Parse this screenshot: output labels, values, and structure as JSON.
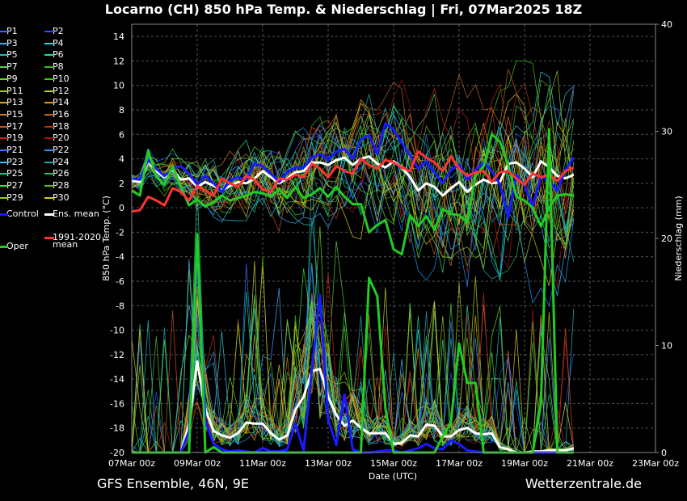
{
  "header": {
    "title": "Locarno  (CH)  850 hPa Temp. & Niederschlag | Fri, 07Mar2025 18Z"
  },
  "footer": {
    "left": "GFS Ensemble, 46N, 9E",
    "right": "Wetterzentrale.de"
  },
  "legend": {
    "members": [
      "P1",
      "P2",
      "P3",
      "P4",
      "P5",
      "P6",
      "P7",
      "P8",
      "P9",
      "P10",
      "P11",
      "P12",
      "P13",
      "P14",
      "P15",
      "P16",
      "P17",
      "P18",
      "P19",
      "P20",
      "P21",
      "P22",
      "P23",
      "P24",
      "P25",
      "P26",
      "P27",
      "P28",
      "P29",
      "P30"
    ],
    "control": "Control",
    "ens_mean": "Ens. mean",
    "oper": "Oper",
    "clim_line1": "1991-2020",
    "clim_line2": "mean"
  },
  "colors": {
    "background": "#000000",
    "grid": "#555555",
    "control": "#1a1aff",
    "ens_mean": "#ffffff",
    "oper": "#22cc22",
    "clim_mean": "#ff3333",
    "members": [
      "#3a6bff",
      "#2255ff",
      "#44aaff",
      "#33ccdd",
      "#22bbbb",
      "#22dd88",
      "#55cc55",
      "#33bb33",
      "#66dd22",
      "#44cc11",
      "#aacc22",
      "#cccc33",
      "#ddaa22",
      "#dd9911",
      "#cc7733",
      "#bb6622",
      "#cc5522",
      "#aa3311",
      "#cc2222",
      "#aa1111",
      "#3377ff",
      "#2299ff",
      "#33bbff",
      "#22aaaa",
      "#11cc99",
      "#22bb66",
      "#44dd44",
      "#66bb22",
      "#99cc11",
      "#ddcc11"
    ]
  },
  "chart_data": {
    "type": "line",
    "xlabel": "Date (UTC)",
    "ylabel_left": "850 hPa Temp. (°C)",
    "ylabel_right": "Niederschlag (mm)",
    "x_start": "07Mar 00z",
    "x_step_hours": 6,
    "x_ticks": [
      "07Mar 00z",
      "09Mar 00z",
      "11Mar 00z",
      "13Mar 00z",
      "15Mar 00z",
      "17Mar 00z",
      "19Mar 00z",
      "21Mar 00z",
      "23Mar 00z"
    ],
    "ylim_left": [
      -20,
      15
    ],
    "yticks_left": [
      14,
      12,
      10,
      8,
      6,
      4,
      2,
      0,
      -2,
      -4,
      -6,
      -8,
      -10,
      -12,
      -14,
      -16,
      -18,
      -20
    ],
    "ylim_right": [
      0,
      40
    ],
    "yticks_right": [
      40,
      30,
      20,
      10,
      0
    ],
    "grid": true,
    "series": [
      {
        "name": "Ens. mean",
        "axis": "left",
        "values": [
          2.2,
          2.1,
          3.8,
          3.0,
          2.5,
          3.1,
          2.3,
          2.4,
          1.7,
          2.1,
          1.8,
          1.4,
          1.8,
          2.1,
          2.0,
          2.4,
          3.0,
          2.5,
          2.0,
          2.4,
          2.9,
          3.0,
          3.7,
          3.7,
          3.5,
          3.9,
          4.1,
          3.5,
          4.0,
          4.2,
          3.6,
          3.3,
          3.8,
          3.3,
          2.5,
          1.4,
          2.0,
          1.7,
          1.0,
          1.6,
          2.1,
          1.3,
          1.9,
          2.3,
          2.0,
          2.1,
          3.6,
          3.7,
          3.2,
          2.5,
          3.8,
          3.3,
          2.6,
          2.4,
          2.7
        ]
      },
      {
        "name": "Control",
        "axis": "left",
        "values": [
          2.4,
          2.3,
          3.9,
          3.2,
          2.6,
          3.2,
          3.4,
          2.8,
          1.9,
          2.6,
          2.0,
          1.3,
          2.2,
          2.5,
          2.3,
          3.6,
          3.4,
          2.8,
          2.1,
          2.9,
          3.3,
          3.3,
          4.1,
          4.4,
          3.9,
          4.6,
          4.8,
          4.0,
          5.6,
          5.9,
          4.4,
          6.9,
          6.4,
          5.3,
          4.3,
          3.2,
          3.8,
          2.9,
          2.0,
          3.1,
          3.5,
          2.3,
          3.1,
          3.7,
          3.0,
          1.9,
          -0.8,
          2.7,
          1.8,
          0.1,
          2.6,
          2.2,
          1.4,
          3.1,
          4.1
        ]
      },
      {
        "name": "Oper",
        "axis": "left",
        "values": [
          1.4,
          1.0,
          4.7,
          2.5,
          1.9,
          3.4,
          1.7,
          0.2,
          0.7,
          0.1,
          0.5,
          1.0,
          0.6,
          0.8,
          1.0,
          1.3,
          1.2,
          0.9,
          1.5,
          0.8,
          1.7,
          0.8,
          1.1,
          1.6,
          0.9,
          1.7,
          0.9,
          0.3,
          0.3,
          -2.0,
          -1.4,
          -1.0,
          -3.4,
          -3.8,
          -0.6,
          -1.5,
          -0.7,
          -1.8,
          -0.1,
          -0.5,
          -0.6,
          -1.2,
          2.6,
          3.4,
          6.0,
          5.4,
          3.5,
          0.9,
          0.6,
          0.0,
          -1.5,
          0.0,
          1.0,
          1.1,
          1.0
        ]
      },
      {
        "name": "1991-2020 mean",
        "axis": "left",
        "values": [
          -0.3,
          -0.2,
          0.9,
          0.6,
          0.2,
          1.6,
          1.3,
          0.6,
          1.8,
          1.4,
          1.0,
          2.4,
          2.0,
          1.7,
          2.6,
          2.3,
          1.5,
          1.3,
          2.4,
          2.3,
          2.7,
          2.5,
          3.6,
          3.2,
          2.5,
          3.4,
          3.0,
          2.8,
          4.0,
          3.5,
          3.2,
          3.9,
          3.7,
          3.3,
          3.0,
          4.6,
          4.1,
          3.7,
          3.0,
          4.2,
          3.2,
          2.6,
          2.9,
          3.0,
          2.1,
          2.9,
          3.0,
          2.4,
          1.9,
          2.8,
          2.5,
          2.7,
          2.2,
          3.0,
          3.3
        ]
      },
      {
        "name": "Ens. mean",
        "axis": "right",
        "values": [
          0,
          0,
          0,
          0,
          0,
          0,
          0,
          2.7,
          8.5,
          4.0,
          2.0,
          1.6,
          1.4,
          1.8,
          2.8,
          2.7,
          2.7,
          1.8,
          1.2,
          1.6,
          4.0,
          5.2,
          7.6,
          7.8,
          5.2,
          3.5,
          2.5,
          3.0,
          2.3,
          1.8,
          1.8,
          1.8,
          0.8,
          0.9,
          1.6,
          1.5,
          2.6,
          2.5,
          1.5,
          1.5,
          2.1,
          2.3,
          1.8,
          1.7,
          1.8,
          0.5,
          0.3,
          0.0,
          0.0,
          0.1,
          0.1,
          0.2,
          0.2,
          0.2,
          0.4
        ]
      },
      {
        "name": "Control",
        "axis": "right",
        "values": [
          0,
          0,
          0,
          0,
          0,
          0,
          0,
          2.0,
          18.5,
          3.0,
          0.8,
          0.3,
          0.1,
          0.2,
          0.1,
          0.0,
          0.4,
          0.1,
          0.1,
          0.3,
          2.7,
          0.2,
          7.7,
          14.7,
          3.1,
          0.7,
          5.4,
          0.3,
          0.0,
          0.0,
          0.1,
          0.2,
          0.2,
          0.0,
          0.2,
          0.4,
          0.8,
          0.4,
          0.3,
          1.1,
          0.8,
          0.2,
          0.1,
          0.0,
          0.0,
          0.0,
          0.0,
          0.0,
          0.0,
          0.0,
          0.0,
          0.0,
          0.0,
          0.0,
          0.0
        ]
      },
      {
        "name": "Oper",
        "axis": "right",
        "values": [
          0,
          0,
          0,
          0,
          0,
          0,
          0,
          0.0,
          20.4,
          0.0,
          0.5,
          0.0,
          0.0,
          0.0,
          0.0,
          0.0,
          0.0,
          0.0,
          0.0,
          0.0,
          0.0,
          0.0,
          0.0,
          0.0,
          0.0,
          0.0,
          0.0,
          0.0,
          0.0,
          16.3,
          14.6,
          4.1,
          0.0,
          0.0,
          0.0,
          0.0,
          0.0,
          0.0,
          1.5,
          2.8,
          10.2,
          6.5,
          6.5,
          0.0,
          0.0,
          0.0,
          0.0,
          0.0,
          0.0,
          0.0,
          4.6,
          30.2,
          0.0,
          0.0,
          0.0
        ]
      }
    ]
  }
}
